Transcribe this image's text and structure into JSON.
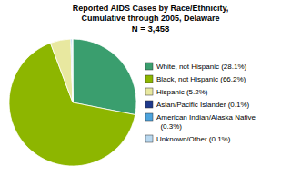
{
  "chart_data": {
    "type": "pie",
    "title": "Reported AIDS Cases by Race/Ethnicity,\nCumulative through 2005, Delaware",
    "subtitle": "N = 3,458",
    "categories": [
      "White, not Hispanic (28.1%)",
      "Black, not Hispanic (66.2%)",
      "Hispanic (5.2%)",
      "Asian/Pacific Islander (0.1%)",
      "American Indian/Alaska Native\n  (0.3%)",
      "Unknown/Other (0.1%)"
    ],
    "values": [
      28.1,
      66.2,
      5.2,
      0.1,
      0.3,
      0.1
    ],
    "colors": [
      "#3a9e6e",
      "#8db600",
      "#e8e8a0",
      "#1f3a8c",
      "#4ca3dd",
      "#b8d8f0"
    ],
    "legend": "right"
  }
}
